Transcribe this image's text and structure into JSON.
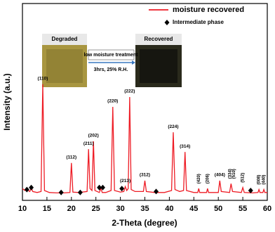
{
  "chart_data": {
    "type": "line",
    "xlabel": "2-Theta (degree)",
    "ylabel": "Intensity (a.u.)",
    "xlim": [
      10,
      60
    ],
    "xticks": [
      10,
      15,
      20,
      25,
      30,
      35,
      40,
      45,
      50,
      55,
      60
    ],
    "ylim": [
      0,
      100
    ],
    "series": [
      {
        "name": "moisture recovered",
        "color": "#ee1c25",
        "x": [
          10,
          10.5,
          10.9,
          11.5,
          11.8,
          12.1,
          13,
          13.8,
          14.15,
          14.5,
          15.5,
          17,
          18.5,
          19.7,
          20,
          20.3,
          21.5,
          23.2,
          23.5,
          23.8,
          24.2,
          24.5,
          24.8,
          25.7,
          26,
          26.3,
          27,
          28.1,
          28.45,
          28.8,
          30,
          30.7,
          31,
          31.3,
          31.6,
          31.9,
          32.2,
          33,
          34.7,
          35,
          35.3,
          37,
          39,
          40.45,
          40.8,
          41.15,
          42.1,
          42.9,
          43.2,
          43.5,
          45,
          45.8,
          46,
          46.2,
          47.6,
          47.8,
          48,
          50,
          50.3,
          50.6,
          52.3,
          52.6,
          52.9,
          54.7,
          55,
          55.3,
          57,
          58.1,
          58.3,
          58.5,
          59.1,
          59.3,
          59.5,
          60
        ],
        "values": [
          6,
          5,
          5.5,
          4.5,
          6.5,
          4.5,
          4,
          4.5,
          59,
          5,
          4,
          3.8,
          3.8,
          4,
          19,
          4.2,
          4,
          4.5,
          26,
          6,
          5,
          30,
          5,
          4,
          6,
          4,
          4,
          5,
          47.5,
          5,
          4.2,
          4.5,
          7,
          5,
          6,
          52.5,
          5.5,
          4.5,
          4.5,
          10,
          4.5,
          4,
          4,
          5,
          34.6,
          5.5,
          4.5,
          5,
          24.6,
          5,
          4,
          4,
          6,
          4,
          4,
          6,
          4,
          4,
          10,
          4.5,
          4,
          8.5,
          4.5,
          4,
          6.5,
          4,
          3.8,
          4,
          5.5,
          4,
          4,
          5.5,
          4,
          4
        ]
      },
      {
        "name": "Intermediate phase",
        "type": "scatter",
        "color": "#000000",
        "x": [
          10.9,
          11.8,
          17.9,
          21.8,
          25.7,
          26.4,
          30.3,
          37.3,
          56.6
        ],
        "values": [
          5.5,
          6.5,
          4,
          4,
          6.5,
          6.5,
          6,
          4.5,
          5
        ]
      }
    ],
    "annotations": [
      {
        "text": "(110)",
        "x": 14.15,
        "y": 59
      },
      {
        "text": "(112)",
        "x": 20,
        "y": 19
      },
      {
        "text": "(211)",
        "x": 23.5,
        "y": 26
      },
      {
        "text": "(202)",
        "x": 24.5,
        "y": 30
      },
      {
        "text": "(220)",
        "x": 28.45,
        "y": 47.5
      },
      {
        "text": "(213)",
        "x": 31,
        "y": 7
      },
      {
        "text": "(222)",
        "x": 31.9,
        "y": 52.5
      },
      {
        "text": "(312)",
        "x": 35,
        "y": 10
      },
      {
        "text": "(224)",
        "x": 40.8,
        "y": 34.6
      },
      {
        "text": "(314)",
        "x": 43.2,
        "y": 24.6
      },
      {
        "text": "(420)",
        "x": 46,
        "y": 6
      },
      {
        "text": "(206)",
        "x": 47.8,
        "y": 6
      },
      {
        "text": "(404)",
        "x": 50.3,
        "y": 10
      },
      {
        "text": "(334)",
        "x": 52.4,
        "y": 8.5
      },
      {
        "text": "(510)",
        "x": 53.2,
        "y": 8.5
      },
      {
        "text": "(512)",
        "x": 55,
        "y": 6.5
      },
      {
        "text": "(008)",
        "x": 58.3,
        "y": 5.5
      },
      {
        "text": "(440)",
        "x": 59.3,
        "y": 5.5
      }
    ]
  },
  "inset": {
    "left_label": "Degraded",
    "right_label": "Recovered",
    "arrow_text": "low moisture treatment",
    "condition": "3hrs, 25% R.H."
  }
}
